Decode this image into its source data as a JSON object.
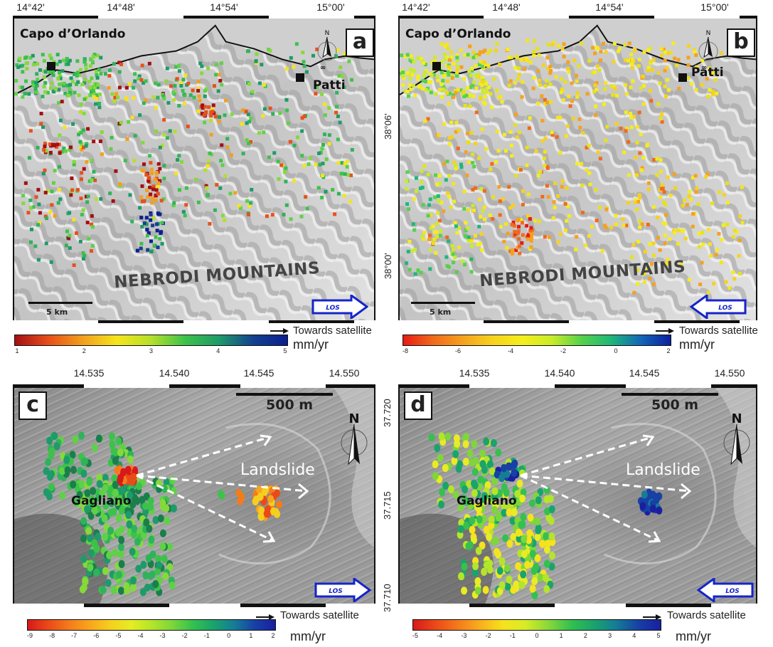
{
  "panels": [
    {
      "letter": "a",
      "top_ticks": [
        "14°42'",
        "14°48'",
        "14°54'",
        "15°00'"
      ],
      "town_left": "Capo d’Orlando",
      "town_right": "Patti",
      "mountains": "NEBRODI MOUNTAINS",
      "scale": "5 km",
      "los": "LOS",
      "los_direction": "right",
      "colorbar": {
        "ticks": [
          "1",
          "2",
          "3",
          "4",
          "5"
        ],
        "colors": [
          "#a50f15",
          "#e8501a",
          "#f2a01e",
          "#f5e51b",
          "#b5e02a",
          "#3cc24a",
          "#1f9a6a",
          "#13418f",
          "#0b1f8f"
        ],
        "towards": "Towards satellite",
        "unit": "mm/yr"
      }
    },
    {
      "letter": "b",
      "top_ticks": [
        "14°42'",
        "14°48'",
        "14°54'",
        "15°00'"
      ],
      "right_ticks": [
        "38°06'",
        "38°00'"
      ],
      "town_left": "Capo d’Orlando",
      "town_right": "Patti",
      "mountains": "NEBRODI MOUNTAINS",
      "scale": "5 km",
      "los": "LOS",
      "los_direction": "left",
      "colorbar": {
        "ticks": [
          "-8",
          "-6",
          "-4",
          "-2",
          "0",
          "2"
        ],
        "colors": [
          "#e81b14",
          "#f06a1c",
          "#f5a11f",
          "#f7d21c",
          "#f5ee1c",
          "#c8ec2a",
          "#56d14a",
          "#1fb77a",
          "#1367b8",
          "#0b1f9f"
        ],
        "towards": "Towards satellite",
        "unit": "mm/yr"
      }
    },
    {
      "letter": "c",
      "top_ticks": [
        "14.535",
        "14.540",
        "14.545",
        "14.550"
      ],
      "place": "Gagliano",
      "landslide": "Landslide",
      "scale": "500 m",
      "north": "N",
      "los": "LOS",
      "los_direction": "right",
      "colorbar": {
        "ticks": [
          "-9",
          "-8",
          "-7",
          "-6",
          "-5",
          "-4",
          "-3",
          "-2",
          "-1",
          "0",
          "1",
          "2"
        ],
        "colors": [
          "#d7191c",
          "#ea4a18",
          "#f47b1c",
          "#f8a51e",
          "#f6cf1e",
          "#e7ec24",
          "#b4e52a",
          "#7dd63a",
          "#35c04f",
          "#1aa46b",
          "#157d96",
          "#1741a5",
          "#1a1fa0"
        ],
        "towards": "Towards satellite",
        "unit": "mm/yr"
      }
    },
    {
      "letter": "d",
      "top_ticks": [
        "14.535",
        "14.540",
        "14.545",
        "14.550"
      ],
      "right_ticks": [
        "37.720",
        "37.715",
        "37.710"
      ],
      "place": "Gagliano",
      "landslide": "Landslide",
      "scale": "500 m",
      "north": "N",
      "los": "LOS",
      "los_direction": "left",
      "colorbar": {
        "ticks": [
          "-5",
          "-4",
          "-3",
          "-2",
          "-1",
          "0",
          "1",
          "2",
          "3",
          "4",
          "5"
        ],
        "colors": [
          "#d7191c",
          "#ea4a18",
          "#f47b1c",
          "#f8b01e",
          "#f6e21e",
          "#d7ec26",
          "#8ad83a",
          "#35c04f",
          "#1aa46b",
          "#157d96",
          "#1741a5",
          "#1a1fa0"
        ],
        "towards": "Towards satellite",
        "unit": "mm/yr"
      }
    }
  ],
  "panel_a_right_ticks": [
    "38°06'",
    "38°00'"
  ]
}
